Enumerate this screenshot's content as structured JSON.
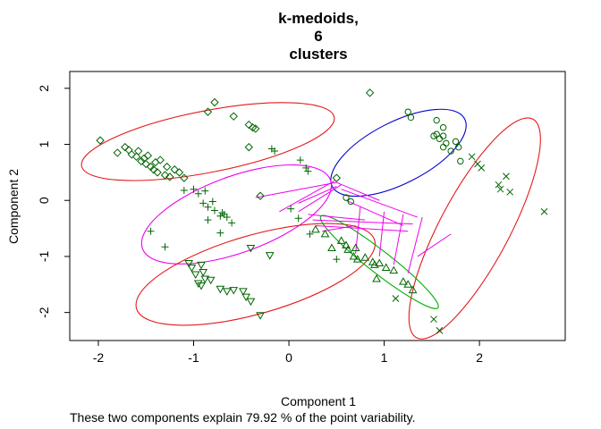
{
  "chart_data": {
    "type": "scatter",
    "title": "k-medoids,\n6\nclusters",
    "title_lines": [
      "k-medoids,",
      "6",
      "clusters"
    ],
    "xlabel": "Component 1",
    "ylabel": "Component 2",
    "caption": "These two components explain 79.92 % of the point variability.",
    "xlim": [
      -2.3,
      2.9
    ],
    "ylim": [
      -2.5,
      2.3
    ],
    "xticks": [
      -2,
      -1,
      0,
      1,
      2
    ],
    "yticks": [
      -2,
      -1,
      0,
      1,
      2
    ],
    "xtick_labels": [
      "-2",
      "-1",
      "0",
      "1",
      "2"
    ],
    "ytick_labels": [
      "-2",
      "-1",
      "0",
      "1",
      "2"
    ],
    "grid": false,
    "point_color": "#006400",
    "clusters": [
      {
        "marker": "diamond",
        "ellipse": {
          "cx": -0.85,
          "cy": 1.05,
          "rx": 1.35,
          "ry": 0.55,
          "angle": 11,
          "color": "#e41a1c"
        },
        "points": [
          [
            -1.98,
            1.07
          ],
          [
            -1.8,
            0.85
          ],
          [
            -1.72,
            0.95
          ],
          [
            -1.68,
            0.9
          ],
          [
            -1.65,
            0.82
          ],
          [
            -1.6,
            0.78
          ],
          [
            -1.58,
            0.88
          ],
          [
            -1.55,
            0.7
          ],
          [
            -1.52,
            0.75
          ],
          [
            -1.5,
            0.65
          ],
          [
            -1.48,
            0.8
          ],
          [
            -1.45,
            0.6
          ],
          [
            -1.42,
            0.55
          ],
          [
            -1.4,
            0.68
          ],
          [
            -1.38,
            0.5
          ],
          [
            -1.35,
            0.72
          ],
          [
            -1.3,
            0.45
          ],
          [
            -1.28,
            0.6
          ],
          [
            -1.25,
            0.42
          ],
          [
            -1.2,
            0.55
          ],
          [
            -1.15,
            0.5
          ],
          [
            -1.1,
            0.4
          ],
          [
            -0.78,
            1.75
          ],
          [
            -0.85,
            1.58
          ],
          [
            -0.58,
            1.5
          ],
          [
            -0.42,
            1.35
          ],
          [
            -0.38,
            1.3
          ],
          [
            -0.35,
            1.28
          ],
          [
            -0.42,
            0.95
          ],
          [
            -0.3,
            0.08
          ],
          [
            0.85,
            1.92
          ],
          [
            0.5,
            0.4
          ]
        ]
      },
      {
        "marker": "circle",
        "ellipse": {
          "cx": 1.15,
          "cy": 0.85,
          "rx": 0.78,
          "ry": 0.55,
          "angle": 27,
          "color": "#0000cd"
        },
        "points": [
          [
            1.25,
            1.58
          ],
          [
            1.28,
            1.48
          ],
          [
            1.55,
            1.43
          ],
          [
            1.62,
            1.3
          ],
          [
            1.55,
            1.18
          ],
          [
            1.58,
            1.1
          ],
          [
            1.62,
            1.15
          ],
          [
            1.65,
            1.02
          ],
          [
            1.62,
            0.95
          ],
          [
            1.75,
            1.05
          ],
          [
            1.78,
            0.95
          ],
          [
            1.7,
            0.88
          ],
          [
            1.52,
            1.15
          ],
          [
            1.8,
            0.7
          ],
          [
            0.6,
            0.05
          ],
          [
            0.65,
            -0.02
          ]
        ]
      },
      {
        "marker": "x",
        "ellipse": {
          "cx": 1.95,
          "cy": -0.5,
          "rx": 1.3,
          "ry": 0.62,
          "angle": 62,
          "color": "#e41a1c"
        },
        "points": [
          [
            1.92,
            0.78
          ],
          [
            1.98,
            0.65
          ],
          [
            2.02,
            0.58
          ],
          [
            2.28,
            0.43
          ],
          [
            2.2,
            0.28
          ],
          [
            2.22,
            0.2
          ],
          [
            2.32,
            0.15
          ],
          [
            2.68,
            -0.2
          ],
          [
            1.52,
            -2.12
          ],
          [
            1.58,
            -2.32
          ],
          [
            1.12,
            -1.75
          ]
        ]
      },
      {
        "marker": "plus",
        "ellipse": {
          "cx": -0.55,
          "cy": -0.25,
          "rx": 1.05,
          "ry": 0.68,
          "angle": 20,
          "color": "#ee00ee"
        },
        "points": [
          [
            -1.45,
            -0.55
          ],
          [
            -1.3,
            -0.83
          ],
          [
            -1.1,
            0.18
          ],
          [
            -1.0,
            0.2
          ],
          [
            -0.95,
            0.12
          ],
          [
            -0.88,
            0.17
          ],
          [
            -0.9,
            -0.05
          ],
          [
            -0.85,
            -0.12
          ],
          [
            -0.8,
            -0.02
          ],
          [
            -0.78,
            -0.18
          ],
          [
            -0.7,
            -0.22
          ],
          [
            -0.68,
            -0.25
          ],
          [
            -0.72,
            -0.28
          ],
          [
            -0.65,
            -0.3
          ],
          [
            -0.85,
            -0.35
          ],
          [
            -0.6,
            -0.4
          ],
          [
            -0.72,
            -0.58
          ],
          [
            -0.18,
            0.92
          ],
          [
            -0.15,
            0.88
          ],
          [
            0.12,
            0.72
          ],
          [
            0.18,
            0.58
          ],
          [
            0.2,
            0.52
          ],
          [
            0.02,
            -0.15
          ],
          [
            0.1,
            -0.32
          ],
          [
            0.5,
            -1.05
          ],
          [
            0.22,
            -0.6
          ]
        ]
      },
      {
        "marker": "triangle-down",
        "ellipse": {
          "cx": -0.35,
          "cy": -1.32,
          "rx": 1.3,
          "ry": 0.7,
          "angle": 16,
          "color": "#e41a1c"
        },
        "points": [
          [
            -1.05,
            -1.12
          ],
          [
            -1.02,
            -1.2
          ],
          [
            -0.92,
            -1.15
          ],
          [
            -0.98,
            -1.32
          ],
          [
            -0.9,
            -1.28
          ],
          [
            -0.88,
            -1.4
          ],
          [
            -0.95,
            -1.48
          ],
          [
            -0.92,
            -1.52
          ],
          [
            -0.82,
            -1.42
          ],
          [
            -0.72,
            -1.58
          ],
          [
            -0.65,
            -1.62
          ],
          [
            -0.58,
            -1.6
          ],
          [
            -0.48,
            -1.62
          ],
          [
            -0.45,
            -1.72
          ],
          [
            -0.4,
            -1.8
          ],
          [
            -0.3,
            -2.05
          ],
          [
            -0.2,
            -0.98
          ],
          [
            -0.4,
            -0.85
          ]
        ]
      },
      {
        "marker": "triangle-up",
        "ellipse": {
          "cx": 0.95,
          "cy": -1.1,
          "rx": 0.78,
          "ry": 0.2,
          "angle": -38,
          "color": "#00b000"
        },
        "points": [
          [
            0.28,
            -0.52
          ],
          [
            0.38,
            -0.6
          ],
          [
            0.55,
            -0.72
          ],
          [
            0.6,
            -0.8
          ],
          [
            0.62,
            -0.88
          ],
          [
            0.7,
            -0.85
          ],
          [
            0.68,
            -1.0
          ],
          [
            0.72,
            -1.05
          ],
          [
            0.8,
            -1.02
          ],
          [
            0.88,
            -1.1
          ],
          [
            0.9,
            -1.15
          ],
          [
            0.95,
            -1.12
          ],
          [
            1.02,
            -1.2
          ],
          [
            1.1,
            -1.25
          ],
          [
            0.92,
            -1.4
          ],
          [
            1.2,
            -1.45
          ],
          [
            1.25,
            -1.5
          ],
          [
            1.3,
            -1.6
          ],
          [
            0.45,
            -0.85
          ]
        ]
      }
    ],
    "link_color": "#ee00ee",
    "links": [
      [
        0.48,
        0.35,
        -0.1,
        -0.2
      ],
      [
        0.55,
        0.28,
        0.1,
        -0.2
      ],
      [
        -0.35,
        0.05,
        0.5,
        0.32
      ],
      [
        0.5,
        0.32,
        0.95,
        0.0
      ],
      [
        0.55,
        0.2,
        1.35,
        -0.3
      ],
      [
        0.6,
        0.0,
        1.2,
        -0.45
      ],
      [
        0.1,
        -0.05,
        0.5,
        0.25
      ],
      [
        0.2,
        -0.25,
        0.8,
        -0.35
      ],
      [
        0.25,
        -0.35,
        1.3,
        -0.42
      ],
      [
        0.28,
        -0.45,
        1.25,
        -0.55
      ],
      [
        0.35,
        -0.55,
        0.7,
        -0.45
      ],
      [
        0.75,
        -0.1,
        0.7,
        -0.95
      ],
      [
        1.0,
        -0.2,
        0.95,
        -1.0
      ],
      [
        1.2,
        -0.25,
        1.1,
        -1.15
      ],
      [
        1.4,
        -0.3,
        1.25,
        -1.3
      ],
      [
        1.35,
        -1.0,
        1.7,
        -0.6
      ]
    ]
  }
}
